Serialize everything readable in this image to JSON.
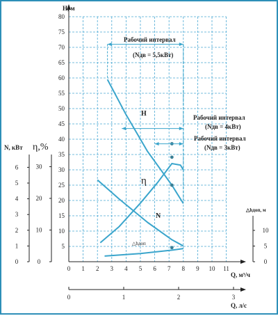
{
  "chart_data": {
    "type": "line",
    "xlabel": "Q, м³/ч",
    "ylabel": "H, м",
    "xlim": [
      0,
      11
    ],
    "ylim": [
      0,
      80
    ],
    "x_ticks": [
      "0",
      "1",
      "2",
      "3",
      "4",
      "5",
      "6",
      "7",
      "8",
      "9",
      "10",
      "11"
    ],
    "y_ticks": [
      "5",
      "10",
      "15",
      "20",
      "25",
      "30",
      "35",
      "40",
      "45",
      "50",
      "55",
      "60",
      "65",
      "70",
      "75",
      "80"
    ],
    "grid": true,
    "colors": {
      "curve": "#3aa5cc",
      "grid": "#4aa8d4",
      "point": "#3a7f95",
      "frame": "#2d8fb8"
    },
    "series": [
      {
        "name": "H",
        "axis": "H",
        "x": [
          2.7,
          4.0,
          5.5,
          7.2,
          8.0
        ],
        "y": [
          59.5,
          48,
          36,
          25,
          19
        ]
      },
      {
        "name": "η",
        "axis": "η",
        "x": [
          2.2,
          3.5,
          5.0,
          6.2,
          7.2,
          7.8,
          8.0
        ],
        "y": [
          6,
          11,
          18.5,
          25,
          31,
          30.5,
          29
        ]
      },
      {
        "name": "N",
        "axis": "N",
        "x": [
          2.0,
          3.5,
          5.5,
          7.2,
          8.0
        ],
        "y": [
          5.2,
          4.0,
          2.5,
          1.4,
          1.0
        ]
      },
      {
        "name": "△hдоп",
        "axis": "dh",
        "x": [
          2.5,
          5.0,
          7.2,
          8.0
        ],
        "y": [
          1.8,
          2.6,
          3.7,
          4.2
        ]
      }
    ],
    "points": {
      "x": [
        7.2,
        7.2,
        7.2,
        7.2
      ],
      "y": [
        33,
        25,
        7.5,
        4.5
      ]
    },
    "annotations": {
      "interval1": {
        "title": "Рабочий интервал",
        "power": "(Nдв = 5,5кВт)",
        "q_from": 2.7,
        "q_to": 8.0,
        "y": 71
      },
      "interval2": {
        "title": "Рабочий интервал",
        "power": "(Nдв = 4кВт)",
        "q_from": 3.7,
        "q_to": 8.0,
        "y": 43.5
      },
      "interval3": {
        "title": "Рабочий интервал",
        "power": "(Nдв = 3кВт)",
        "q_from": 6.0,
        "q_to": 8.0,
        "y": 38.5
      },
      "label_H": "H",
      "label_eta": "η",
      "label_N": "N",
      "label_dh": "△hдоп"
    },
    "left_axes": {
      "N": {
        "label": "N, кВт",
        "ticks": [
          "0",
          "1",
          "2",
          "3",
          "4",
          "5",
          "6"
        ]
      },
      "eta": {
        "label": "η,%",
        "ticks": [
          "0",
          "10",
          "20",
          "30"
        ]
      }
    },
    "right_axis": {
      "label": "△hдоп, м",
      "ticks": [
        "0",
        "5",
        "10"
      ]
    },
    "bottom_axis": {
      "label": "Q, л/с",
      "ticks": [
        "0",
        "1",
        "2",
        "3"
      ]
    }
  }
}
